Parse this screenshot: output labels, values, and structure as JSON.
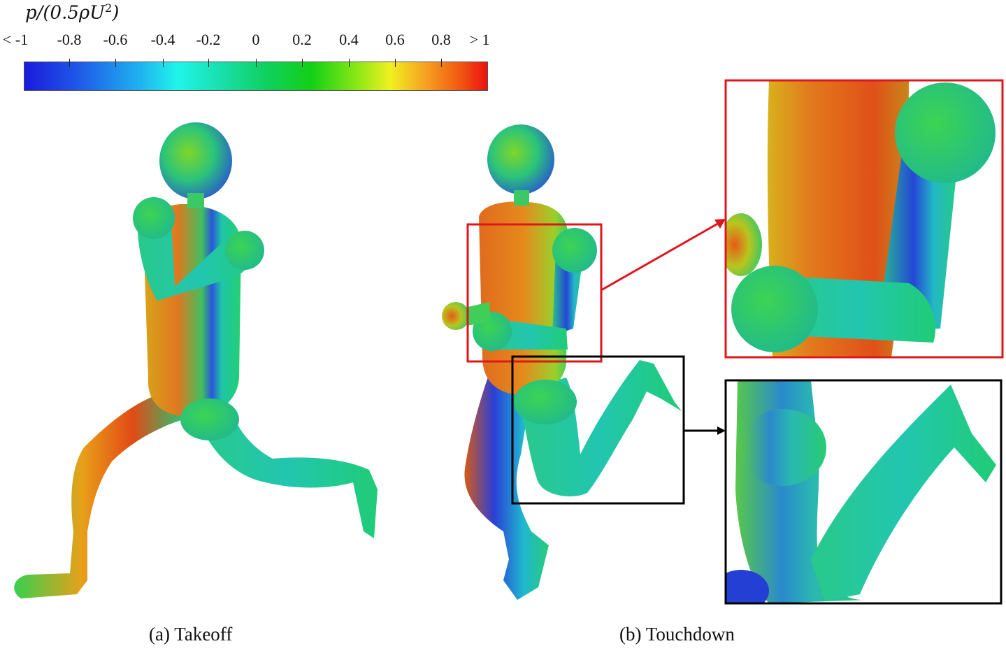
{
  "colorbar": {
    "title": "p/(0.5ρU",
    "title_sup": "2",
    "title_close": ")",
    "ticks": [
      "< -1",
      "-0.8",
      "-0.6",
      "-0.4",
      "-0.2",
      "0",
      "0.2",
      "0.4",
      "0.6",
      "0.8",
      "> 1"
    ],
    "colormap": "blue-cyan-green-yellow-red"
  },
  "panels": {
    "a_label": "(a)",
    "a_text": "Takeoff",
    "b_label": "(b)",
    "b_text": "Touchdown"
  },
  "colors": {
    "green": "#1ed46a",
    "teal": "#26c99a",
    "blue": "#2240d6",
    "orange": "#e57a1a",
    "red_box": "#e0161c",
    "black_box": "#000000"
  }
}
